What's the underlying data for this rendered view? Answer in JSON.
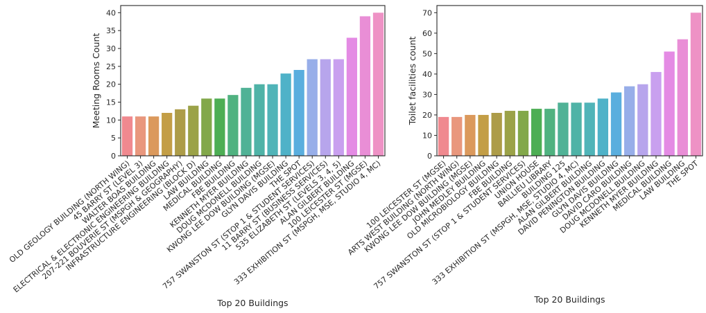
{
  "chart_data": [
    {
      "type": "bar",
      "xlabel": "Top 20 Buildings",
      "ylabel": "Meeting Rooms Count",
      "ylim": [
        0,
        42
      ],
      "yticks": [
        0,
        5,
        10,
        15,
        20,
        25,
        30,
        35,
        40
      ],
      "grid": false,
      "categories": [
        "OLD GEOLOGY BUILDING (NORTH WING)",
        "45 BARRY ST (LEVEL 3)",
        "WALTER BOAS BUILDING",
        "ELECTRICAL & ELECTRONIC ENGINEERING BUILDING",
        "207-221 BOUVERIE ST (MSPGH & GEOGRAPHY)",
        "INFRASTRUCTURE ENGINEERING (BLOCK D)",
        "LAW BUILDING",
        "MEDICAL BUILDING",
        "FBE BUILDING",
        "KENNETH MYER BUILDING",
        "DOUG MCDONELL BUILDING",
        "KWONG LEE DOW BUILDING (MGSE)",
        "GLYN DAVIS BUILDING",
        "THE SPOT",
        "757 SWANSTON ST (STOP 1 & STUDENT SERVICES)",
        "11 BARRY ST (BUSINESS SERVICES)",
        "535 ELIZABETH ST (LEVELS 3, 4, 5)",
        "ALAN GILBERT BUILDING",
        "100 LEICESTER ST (MGSE)",
        "333 EXHIBITION ST (MSPGH, MSE, STUDIO 4, MC)"
      ],
      "values": [
        11,
        11,
        11,
        12,
        13,
        14,
        16,
        16,
        17,
        19,
        20,
        20,
        23,
        24,
        27,
        27,
        27,
        33,
        39,
        40
      ],
      "colors": [
        "#f0898f",
        "#e9977d",
        "#db995c",
        "#c39e46",
        "#ad9c48",
        "#9ba248",
        "#82a84a",
        "#4dae54",
        "#50b280",
        "#50b296",
        "#4fb3a7",
        "#50b4b8",
        "#4fb2c8",
        "#5aaede",
        "#97aee9",
        "#b7a5ec",
        "#c9a0ef",
        "#e48be4",
        "#e98ed6",
        "#ee92c5"
      ]
    },
    {
      "type": "bar",
      "xlabel": "Top 20 Buildings",
      "ylabel": "Toilet facilities count",
      "ylim": [
        0,
        73.5
      ],
      "yticks": [
        0,
        10,
        20,
        30,
        40,
        50,
        60,
        70
      ],
      "grid": false,
      "categories": [
        "100 LEICESTER ST (MGSE)",
        "ARTS WEST BUILDING (NORTH WING)",
        "KWONG LEE DOW BUILDING (MGSE)",
        "JOHN MEDLEY BUILDING",
        "OLD MICROBIOLOGY BUILDING",
        "FBE BUILDING",
        "757 SWANSTON ST (STOP 1 & STUDENT SERVICES)",
        "UNION HOUSE",
        "BAILLIEU LIBRARY",
        "BUILDING 125",
        "333 EXHIBITION ST (MSPGH, MSE, STUDIO 4, MC)",
        "ALAN GILBERT BUILDING",
        "DAVID PENINGTON BUILDING",
        "GLYN DAVIS BUILDING",
        "DAVID CARO BUILDING",
        "DOUG MCDONELL BUILDING",
        "KENNETH MYER BUILDING",
        "MEDICAL BUILDING",
        "LAW BUILDING",
        "THE SPOT"
      ],
      "values": [
        19,
        19,
        20,
        20,
        21,
        22,
        22,
        23,
        23,
        26,
        26,
        26,
        28,
        31,
        34,
        35,
        41,
        51,
        57,
        70
      ],
      "colors": [
        "#f0898f",
        "#e9977d",
        "#db995c",
        "#c39e46",
        "#ad9c48",
        "#9ba248",
        "#82a84a",
        "#4dae54",
        "#50b280",
        "#50b296",
        "#4fb3a7",
        "#50b4b8",
        "#4fb2c8",
        "#5aaede",
        "#97aee9",
        "#b7a5ec",
        "#c9a0ef",
        "#e48be4",
        "#e98ed6",
        "#ee92c5"
      ]
    }
  ]
}
